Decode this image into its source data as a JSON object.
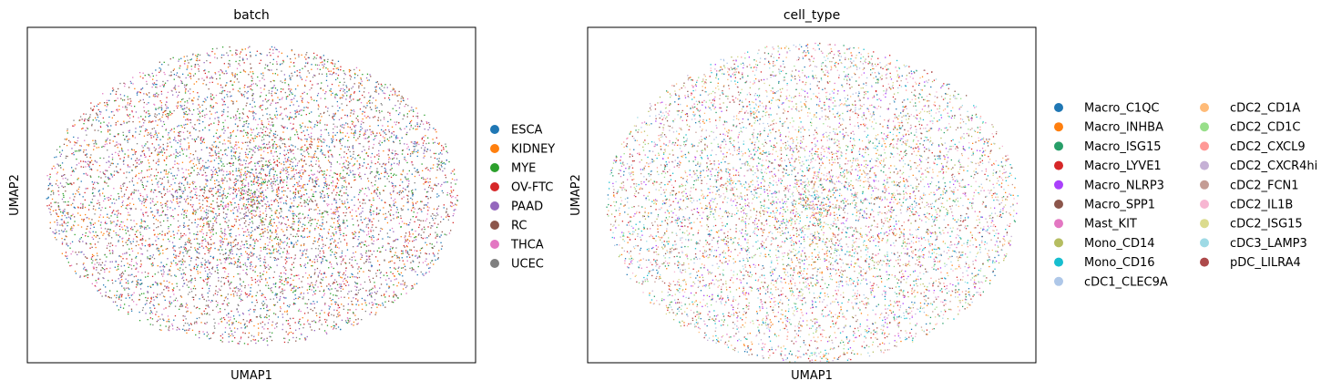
{
  "chart_data": [
    {
      "type": "scatter",
      "title": "batch",
      "xlabel": "UMAP1",
      "ylabel": "UMAP2",
      "x_ticks": "none",
      "y_ticks": "none",
      "grid": false,
      "legend_placement": "right",
      "legend_columns": 1,
      "point_size": "very small",
      "distribution": "dense elliptical cloud, all categories intermixed",
      "categories": [
        {
          "name": "ESCA",
          "color": "#1f77b4"
        },
        {
          "name": "KIDNEY",
          "color": "#ff7f0e"
        },
        {
          "name": "MYE",
          "color": "#2ca02c"
        },
        {
          "name": "OV-FTC",
          "color": "#d62728"
        },
        {
          "name": "PAAD",
          "color": "#9467bd"
        },
        {
          "name": "RC",
          "color": "#8c564b"
        },
        {
          "name": "THCA",
          "color": "#e377c2"
        },
        {
          "name": "UCEC",
          "color": "#7f7f7f"
        }
      ]
    },
    {
      "type": "scatter",
      "title": "cell_type",
      "xlabel": "UMAP1",
      "ylabel": "UMAP2",
      "x_ticks": "none",
      "y_ticks": "none",
      "grid": false,
      "legend_placement": "right",
      "legend_columns": 2,
      "point_size": "very small",
      "distribution": "dense elliptical cloud, all categories intermixed",
      "categories": [
        {
          "name": "Macro_C1QC",
          "color": "#1f77b4"
        },
        {
          "name": "Macro_INHBA",
          "color": "#ff7f0e"
        },
        {
          "name": "Macro_ISG15",
          "color": "#279e68"
        },
        {
          "name": "Macro_LYVE1",
          "color": "#d62728"
        },
        {
          "name": "Macro_NLRP3",
          "color": "#aa40fc"
        },
        {
          "name": "Macro_SPP1",
          "color": "#8c564b"
        },
        {
          "name": "Mast_KIT",
          "color": "#e377c2"
        },
        {
          "name": "Mono_CD14",
          "color": "#b5bd61"
        },
        {
          "name": "Mono_CD16",
          "color": "#17becf"
        },
        {
          "name": "cDC1_CLEC9A",
          "color": "#aec7e8"
        },
        {
          "name": "cDC2_CD1A",
          "color": "#ffbb78"
        },
        {
          "name": "cDC2_CD1C",
          "color": "#98df8a"
        },
        {
          "name": "cDC2_CXCL9",
          "color": "#ff9896"
        },
        {
          "name": "cDC2_CXCR4hi",
          "color": "#c5b0d5"
        },
        {
          "name": "cDC2_FCN1",
          "color": "#c49c94"
        },
        {
          "name": "cDC2_IL1B",
          "color": "#f7b6d2"
        },
        {
          "name": "cDC2_ISG15",
          "color": "#dbdb8d"
        },
        {
          "name": "cDC3_LAMP3",
          "color": "#9edae5"
        },
        {
          "name": "pDC_LILRA4",
          "color": "#ad494a"
        }
      ]
    }
  ]
}
